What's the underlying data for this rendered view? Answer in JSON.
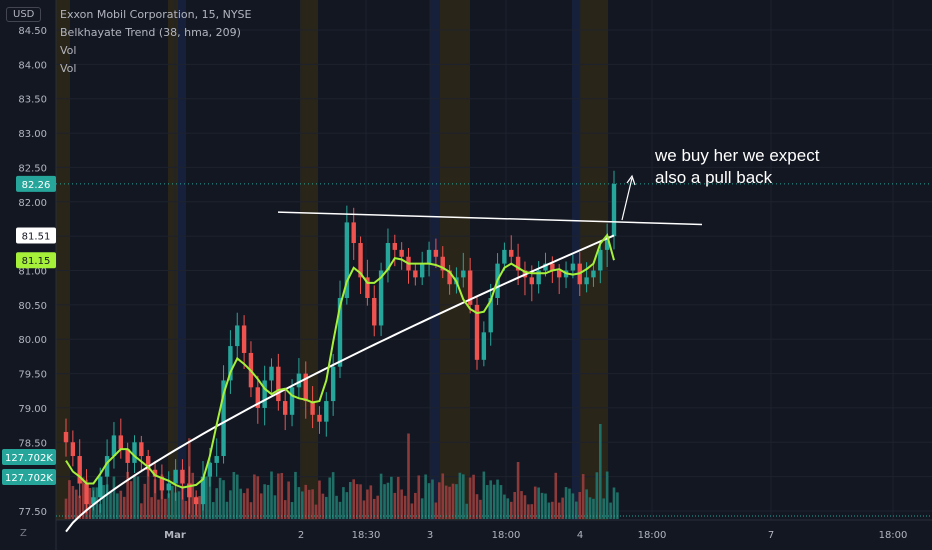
{
  "legend": {
    "title": "Exxon Mobil Corporation, 15, NYSE",
    "indicator": "Belkhayate Trend (38, hma, 209)",
    "vol1": "Vol",
    "vol2": "Vol"
  },
  "currency": "USD",
  "scale_button": "Z",
  "annotation": {
    "line1": "we buy her we expect",
    "line2": "also a pull back"
  },
  "colors": {
    "background": "#131722",
    "up": "#26a69a",
    "down": "#ef5350",
    "text": "#b2b5be",
    "grid": "#1e222d",
    "trend_fast": "#a6f03a",
    "trend_slow": "#ffffff",
    "session_orange": "#2a2519",
    "session_blue": "#16203a"
  },
  "chart_data": {
    "type": "candlestick",
    "title": "Exxon Mobil Corporation, 15, NYSE",
    "y_ticks": [
      "84.50",
      "84.00",
      "83.50",
      "83.00",
      "82.50",
      "82.00",
      "81.50",
      "81.00",
      "80.50",
      "80.00",
      "79.50",
      "79.00",
      "78.50",
      "78.00",
      "77.50"
    ],
    "ylim": [
      77.4,
      84.6
    ],
    "x_ticks": [
      "Mar",
      "2",
      "18:30",
      "3",
      "18:00",
      "4",
      "18:00",
      "7",
      "18:00"
    ],
    "price_labels": [
      {
        "value": "82.26",
        "color": "#26a69a"
      },
      {
        "value": "81.51",
        "color": "#ffffff"
      },
      {
        "value": "81.15",
        "color": "#a6f03a"
      },
      {
        "value": "127.702K",
        "color": "#26a69a"
      },
      {
        "value": "127.702K",
        "color": "#26a69a"
      }
    ],
    "current_price": 82.26,
    "slow_trend_last": 81.51,
    "fast_trend_last": 81.15,
    "trendline": {
      "start": 81.85,
      "end": 81.67
    },
    "series_close": [
      78.5,
      78.3,
      77.9,
      77.6,
      77.7,
      78.0,
      78.3,
      78.6,
      78.4,
      78.2,
      78.5,
      78.3,
      78.1,
      78.0,
      77.8,
      77.9,
      78.1,
      77.9,
      77.7,
      77.6,
      78.0,
      78.2,
      78.3,
      79.4,
      79.9,
      80.2,
      79.8,
      79.3,
      79.0,
      79.4,
      79.6,
      79.1,
      78.9,
      79.3,
      79.5,
      79.1,
      78.9,
      78.8,
      79.1,
      79.6,
      80.6,
      81.7,
      81.4,
      80.9,
      80.6,
      80.2,
      81.0,
      81.4,
      81.3,
      81.2,
      81.0,
      80.9,
      81.1,
      81.3,
      81.2,
      81.0,
      80.8,
      80.9,
      81.0,
      80.5,
      79.7,
      80.1,
      80.6,
      81.1,
      81.3,
      81.2,
      81.0,
      80.9,
      80.8,
      81.0,
      81.1,
      81.0,
      80.9,
      81.0,
      81.1,
      80.8,
      80.9,
      81.0,
      81.3,
      81.5,
      82.26
    ],
    "volume_max": "127.702K"
  }
}
